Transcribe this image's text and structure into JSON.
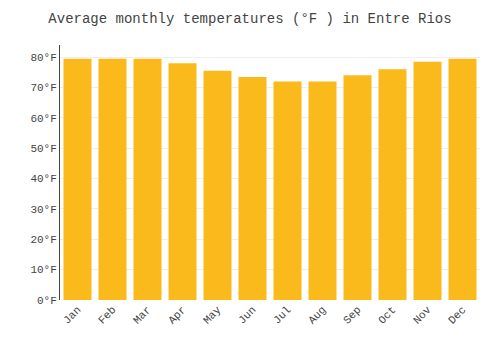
{
  "chart_data": {
    "type": "bar",
    "title": "Average monthly temperatures (°F ) in Entre Rios",
    "categories": [
      "Jan",
      "Feb",
      "Mar",
      "Apr",
      "May",
      "Jun",
      "Jul",
      "Aug",
      "Sep",
      "Oct",
      "Nov",
      "Dec"
    ],
    "values": [
      79.5,
      79.5,
      79.5,
      78.0,
      75.5,
      73.5,
      72.0,
      72.0,
      74.0,
      76.0,
      78.5,
      79.5
    ],
    "color": "#FBBA1C",
    "ylim": [
      0,
      84
    ],
    "yticks": [
      {
        "value": 0,
        "label": "0°F"
      },
      {
        "value": 10,
        "label": "10°F"
      },
      {
        "value": 20,
        "label": "20°F"
      },
      {
        "value": 30,
        "label": "30°F"
      },
      {
        "value": 40,
        "label": "40°F"
      },
      {
        "value": 50,
        "label": "50°F"
      },
      {
        "value": 60,
        "label": "60°F"
      },
      {
        "value": 70,
        "label": "70°F"
      },
      {
        "value": 80,
        "label": "80°F"
      }
    ],
    "grid": true
  }
}
